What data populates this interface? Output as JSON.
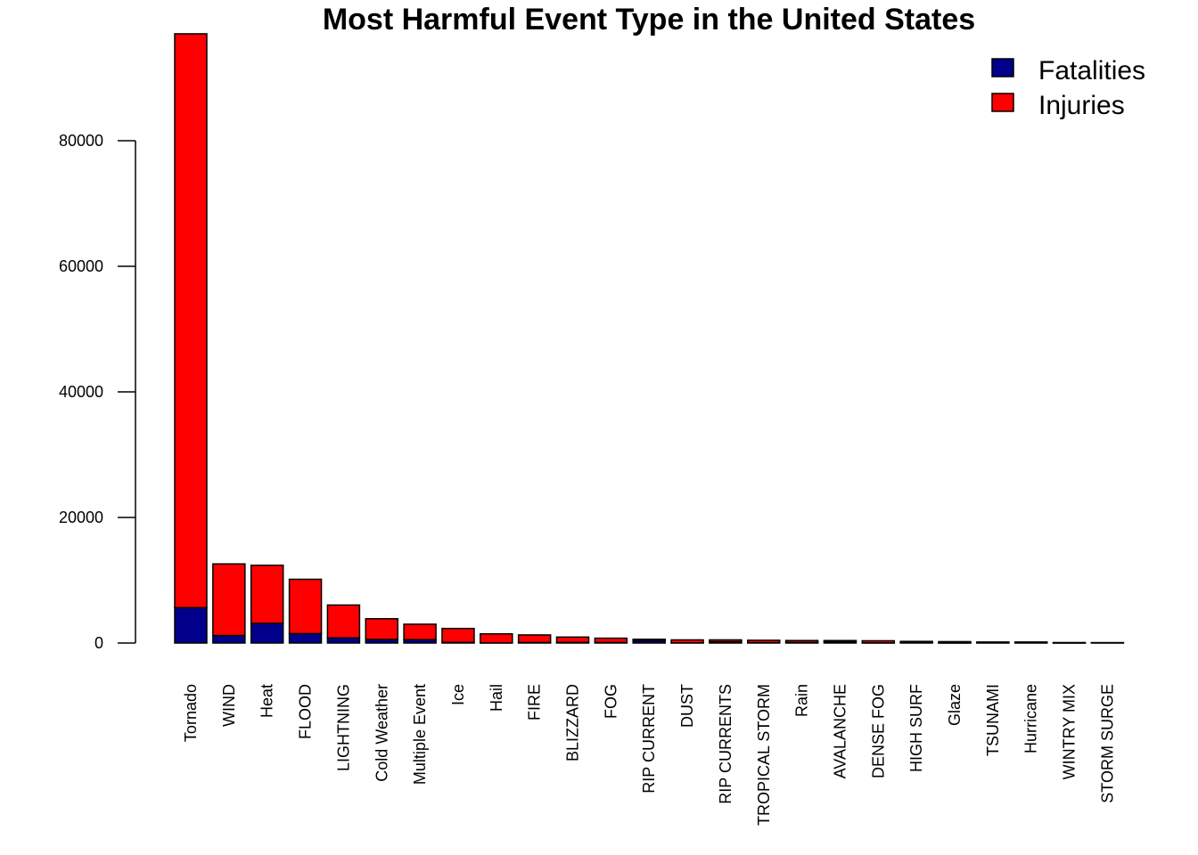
{
  "chart_data": {
    "type": "bar",
    "stacked": true,
    "title": "Most Harmful Event Type in the United States",
    "xlabel": "",
    "ylabel": "",
    "ylim": [
      0,
      96000
    ],
    "yticks": [
      "0",
      "20000",
      "40000",
      "60000",
      "80000"
    ],
    "grid": false,
    "legend_position": "top-right",
    "categories": [
      "Tornado",
      "WIND",
      "Heat",
      "FLOOD",
      "LIGHTNING",
      "Cold Weather",
      "Multiple Event",
      "Ice",
      "Hail",
      "FIRE",
      "BLIZZARD",
      "FOG",
      "RIP CURRENT",
      "DUST",
      "RIP CURRENTS",
      "TROPICAL STORM",
      "Rain",
      "AVALANCHE",
      "DENSE FOG",
      "HIGH SURF",
      "Glaze",
      "TSUNAMI",
      "Hurricane",
      "WINTRY MIX",
      "STORM SURGE"
    ],
    "series": [
      {
        "name": "Fatalities",
        "color": "#00008B",
        "values": [
          5630,
          1200,
          3140,
          1500,
          820,
          570,
          540,
          100,
          15,
          90,
          101,
          80,
          368,
          24,
          204,
          58,
          100,
          224,
          18,
          104,
          7,
          33,
          135,
          1,
          24
        ]
      },
      {
        "name": "Injuries",
        "color": "#FF0000",
        "values": [
          91400,
          11400,
          9250,
          8650,
          5230,
          3300,
          2460,
          2220,
          1450,
          1200,
          850,
          690,
          232,
          476,
          297,
          383,
          300,
          170,
          342,
          156,
          216,
          129,
          20,
          77,
          43
        ]
      }
    ]
  }
}
